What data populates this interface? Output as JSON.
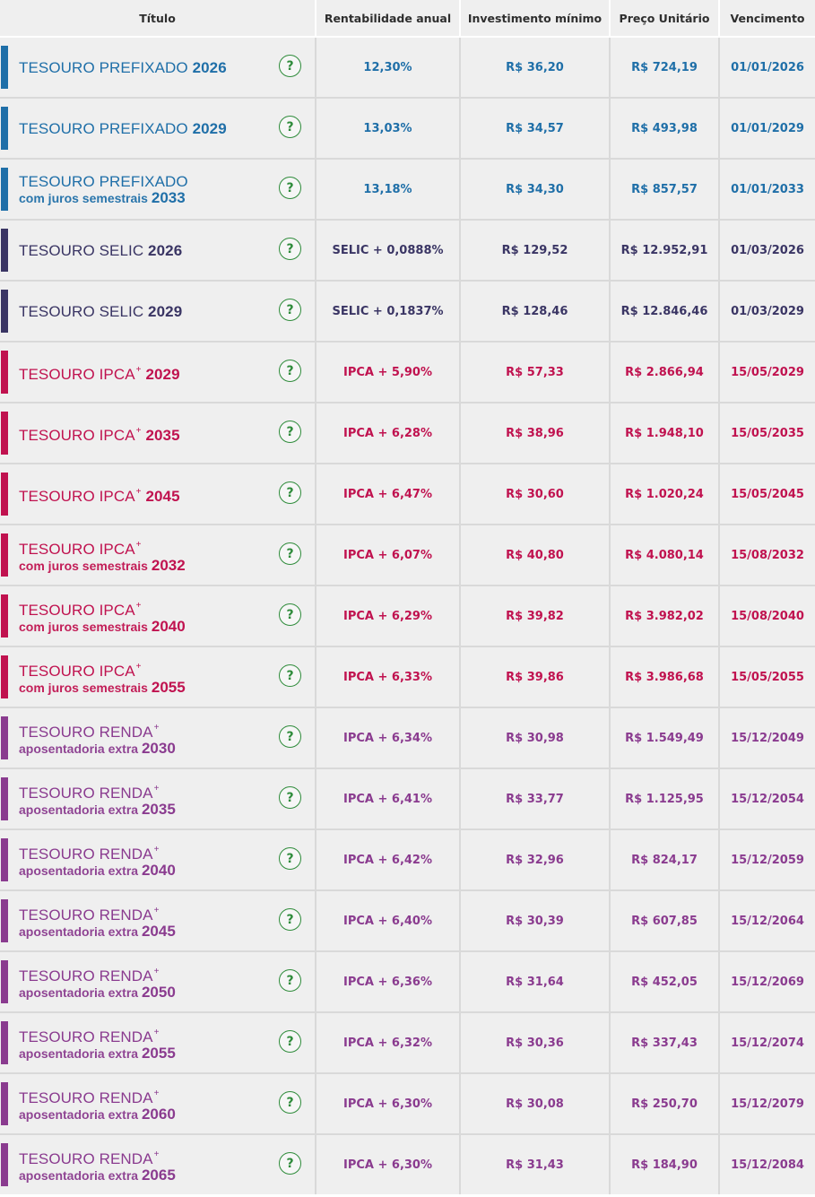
{
  "headers": {
    "titulo": "Título",
    "rentabilidade": "Rentabilidade anual",
    "investimento": "Investimento mínimo",
    "preco": "Preço Unitário",
    "vencimento": "Vencimento"
  },
  "help_symbol": "?",
  "help_icon": "question-circle-icon",
  "group_colors": {
    "prefixado": "#1f6fa8",
    "selic": "#3a3564",
    "ipca": "#c0124f",
    "renda": "#8a3b8f"
  },
  "rows": [
    {
      "group": "prefixado",
      "name": "TESOURO PREFIXADO",
      "plus": "",
      "sub": "",
      "year": "2026",
      "rate": "12,30%",
      "min": "R$ 36,20",
      "price": "R$ 724,19",
      "due": "01/01/2026"
    },
    {
      "group": "prefixado",
      "name": "TESOURO PREFIXADO",
      "plus": "",
      "sub": "",
      "year": "2029",
      "rate": "13,03%",
      "min": "R$ 34,57",
      "price": "R$ 493,98",
      "due": "01/01/2029"
    },
    {
      "group": "prefixado",
      "name": "TESOURO PREFIXADO",
      "plus": "",
      "sub": "com juros semestrais",
      "year": "2033",
      "rate": "13,18%",
      "min": "R$ 34,30",
      "price": "R$ 857,57",
      "due": "01/01/2033"
    },
    {
      "group": "selic",
      "name": "TESOURO SELIC",
      "plus": "",
      "sub": "",
      "year": "2026",
      "rate": "SELIC + 0,0888%",
      "min": "R$ 129,52",
      "price": "R$ 12.952,91",
      "due": "01/03/2026"
    },
    {
      "group": "selic",
      "name": "TESOURO SELIC",
      "plus": "",
      "sub": "",
      "year": "2029",
      "rate": "SELIC + 0,1837%",
      "min": "R$ 128,46",
      "price": "R$ 12.846,46",
      "due": "01/03/2029"
    },
    {
      "group": "ipca",
      "name": "TESOURO IPCA",
      "plus": "+",
      "sub": "",
      "year": "2029",
      "rate": "IPCA + 5,90%",
      "min": "R$ 57,33",
      "price": "R$ 2.866,94",
      "due": "15/05/2029"
    },
    {
      "group": "ipca",
      "name": "TESOURO IPCA",
      "plus": "+",
      "sub": "",
      "year": "2035",
      "rate": "IPCA + 6,28%",
      "min": "R$ 38,96",
      "price": "R$ 1.948,10",
      "due": "15/05/2035"
    },
    {
      "group": "ipca",
      "name": "TESOURO IPCA",
      "plus": "+",
      "sub": "",
      "year": "2045",
      "rate": "IPCA + 6,47%",
      "min": "R$ 30,60",
      "price": "R$ 1.020,24",
      "due": "15/05/2045"
    },
    {
      "group": "ipca",
      "name": "TESOURO IPCA",
      "plus": "+",
      "sub": "com juros semestrais",
      "year": "2032",
      "rate": "IPCA + 6,07%",
      "min": "R$ 40,80",
      "price": "R$ 4.080,14",
      "due": "15/08/2032"
    },
    {
      "group": "ipca",
      "name": "TESOURO IPCA",
      "plus": "+",
      "sub": "com juros semestrais",
      "year": "2040",
      "rate": "IPCA + 6,29%",
      "min": "R$ 39,82",
      "price": "R$ 3.982,02",
      "due": "15/08/2040"
    },
    {
      "group": "ipca",
      "name": "TESOURO IPCA",
      "plus": "+",
      "sub": "com juros semestrais",
      "year": "2055",
      "rate": "IPCA + 6,33%",
      "min": "R$ 39,86",
      "price": "R$ 3.986,68",
      "due": "15/05/2055"
    },
    {
      "group": "renda",
      "name": "TESOURO RENDA",
      "plus": "+",
      "sub": "aposentadoria extra",
      "year": "2030",
      "rate": "IPCA + 6,34%",
      "min": "R$ 30,98",
      "price": "R$ 1.549,49",
      "due": "15/12/2049"
    },
    {
      "group": "renda",
      "name": "TESOURO RENDA",
      "plus": "+",
      "sub": "aposentadoria extra",
      "year": "2035",
      "rate": "IPCA + 6,41%",
      "min": "R$ 33,77",
      "price": "R$ 1.125,95",
      "due": "15/12/2054"
    },
    {
      "group": "renda",
      "name": "TESOURO RENDA",
      "plus": "+",
      "sub": "aposentadoria extra",
      "year": "2040",
      "rate": "IPCA + 6,42%",
      "min": "R$ 32,96",
      "price": "R$ 824,17",
      "due": "15/12/2059"
    },
    {
      "group": "renda",
      "name": "TESOURO RENDA",
      "plus": "+",
      "sub": "aposentadoria extra",
      "year": "2045",
      "rate": "IPCA + 6,40%",
      "min": "R$ 30,39",
      "price": "R$ 607,85",
      "due": "15/12/2064"
    },
    {
      "group": "renda",
      "name": "TESOURO RENDA",
      "plus": "+",
      "sub": "aposentadoria extra",
      "year": "2050",
      "rate": "IPCA + 6,36%",
      "min": "R$ 31,64",
      "price": "R$ 452,05",
      "due": "15/12/2069"
    },
    {
      "group": "renda",
      "name": "TESOURO RENDA",
      "plus": "+",
      "sub": "aposentadoria extra",
      "year": "2055",
      "rate": "IPCA + 6,32%",
      "min": "R$ 30,36",
      "price": "R$ 337,43",
      "due": "15/12/2074"
    },
    {
      "group": "renda",
      "name": "TESOURO RENDA",
      "plus": "+",
      "sub": "aposentadoria extra",
      "year": "2060",
      "rate": "IPCA + 6,30%",
      "min": "R$ 30,08",
      "price": "R$ 250,70",
      "due": "15/12/2079"
    },
    {
      "group": "renda",
      "name": "TESOURO RENDA",
      "plus": "+",
      "sub": "aposentadoria extra",
      "year": "2065",
      "rate": "IPCA + 6,30%",
      "min": "R$ 31,43",
      "price": "R$ 184,90",
      "due": "15/12/2084"
    }
  ]
}
